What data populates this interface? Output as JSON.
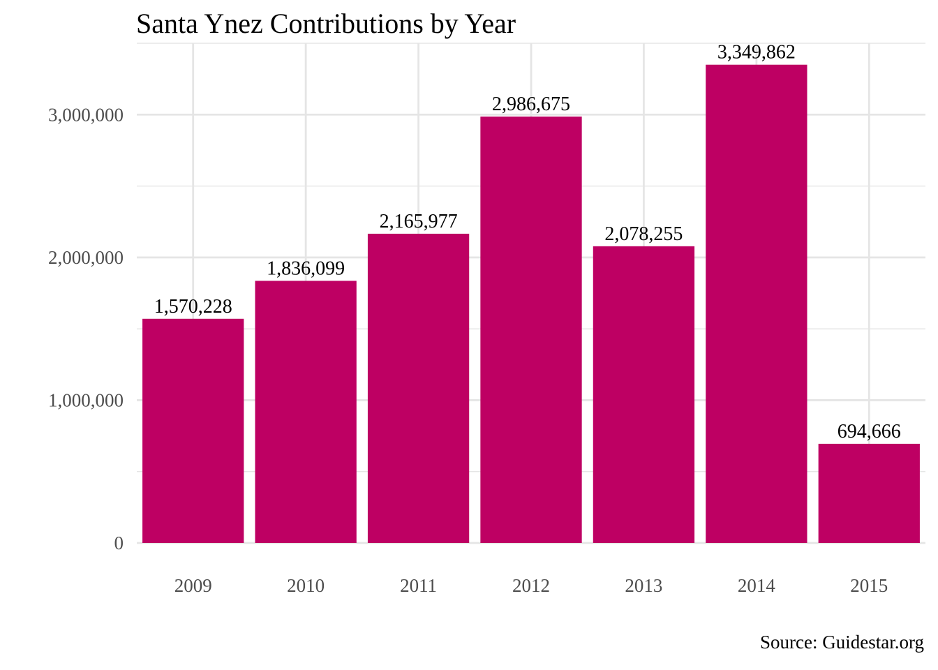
{
  "chart_data": {
    "type": "bar",
    "title": "Santa Ynez Contributions by Year",
    "caption": "Source: Guidestar.org",
    "xlabel": "",
    "ylabel": "",
    "categories": [
      "2009",
      "2010",
      "2011",
      "2012",
      "2013",
      "2014",
      "2015"
    ],
    "values": [
      1570228,
      1836099,
      2165977,
      2986675,
      2078255,
      3349862,
      694666
    ],
    "value_labels": [
      "1,570,228",
      "1,836,099",
      "2,165,977",
      "2,986,675",
      "2,078,255",
      "3,349,862",
      "694,666"
    ],
    "ylim": [
      0,
      3500000
    ],
    "y_ticks": [
      0,
      1000000,
      2000000,
      3000000
    ],
    "y_tick_labels": [
      "0",
      "1,000,000",
      "2,000,000",
      "3,000,000"
    ],
    "grid": true,
    "legend": "none",
    "colors": {
      "bar": "#BE0063",
      "grid": "#E5E5E5",
      "tick_label": "#4D4D4D",
      "text": "#000000"
    }
  }
}
